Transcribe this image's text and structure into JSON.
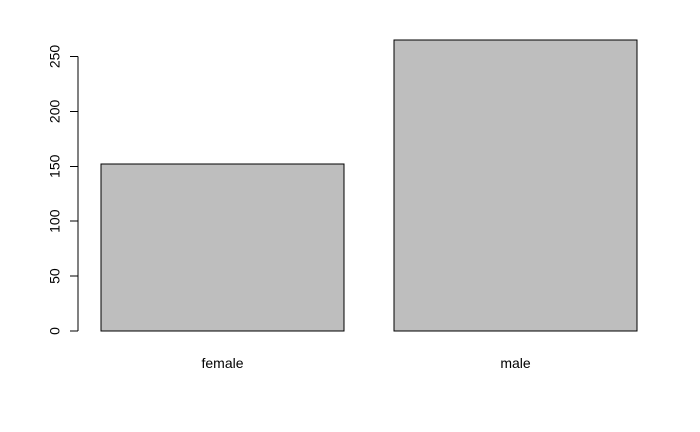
{
  "chart_data": {
    "type": "bar",
    "categories": [
      "female",
      "male"
    ],
    "values": [
      152,
      265
    ],
    "title": "",
    "xlabel": "",
    "ylabel": "",
    "ylim": [
      0,
      265
    ],
    "yticks": [
      0,
      50,
      100,
      150,
      200,
      250
    ],
    "grid": false,
    "legend": "none",
    "bar_color": "#bebebe",
    "border_color": "#000000"
  }
}
